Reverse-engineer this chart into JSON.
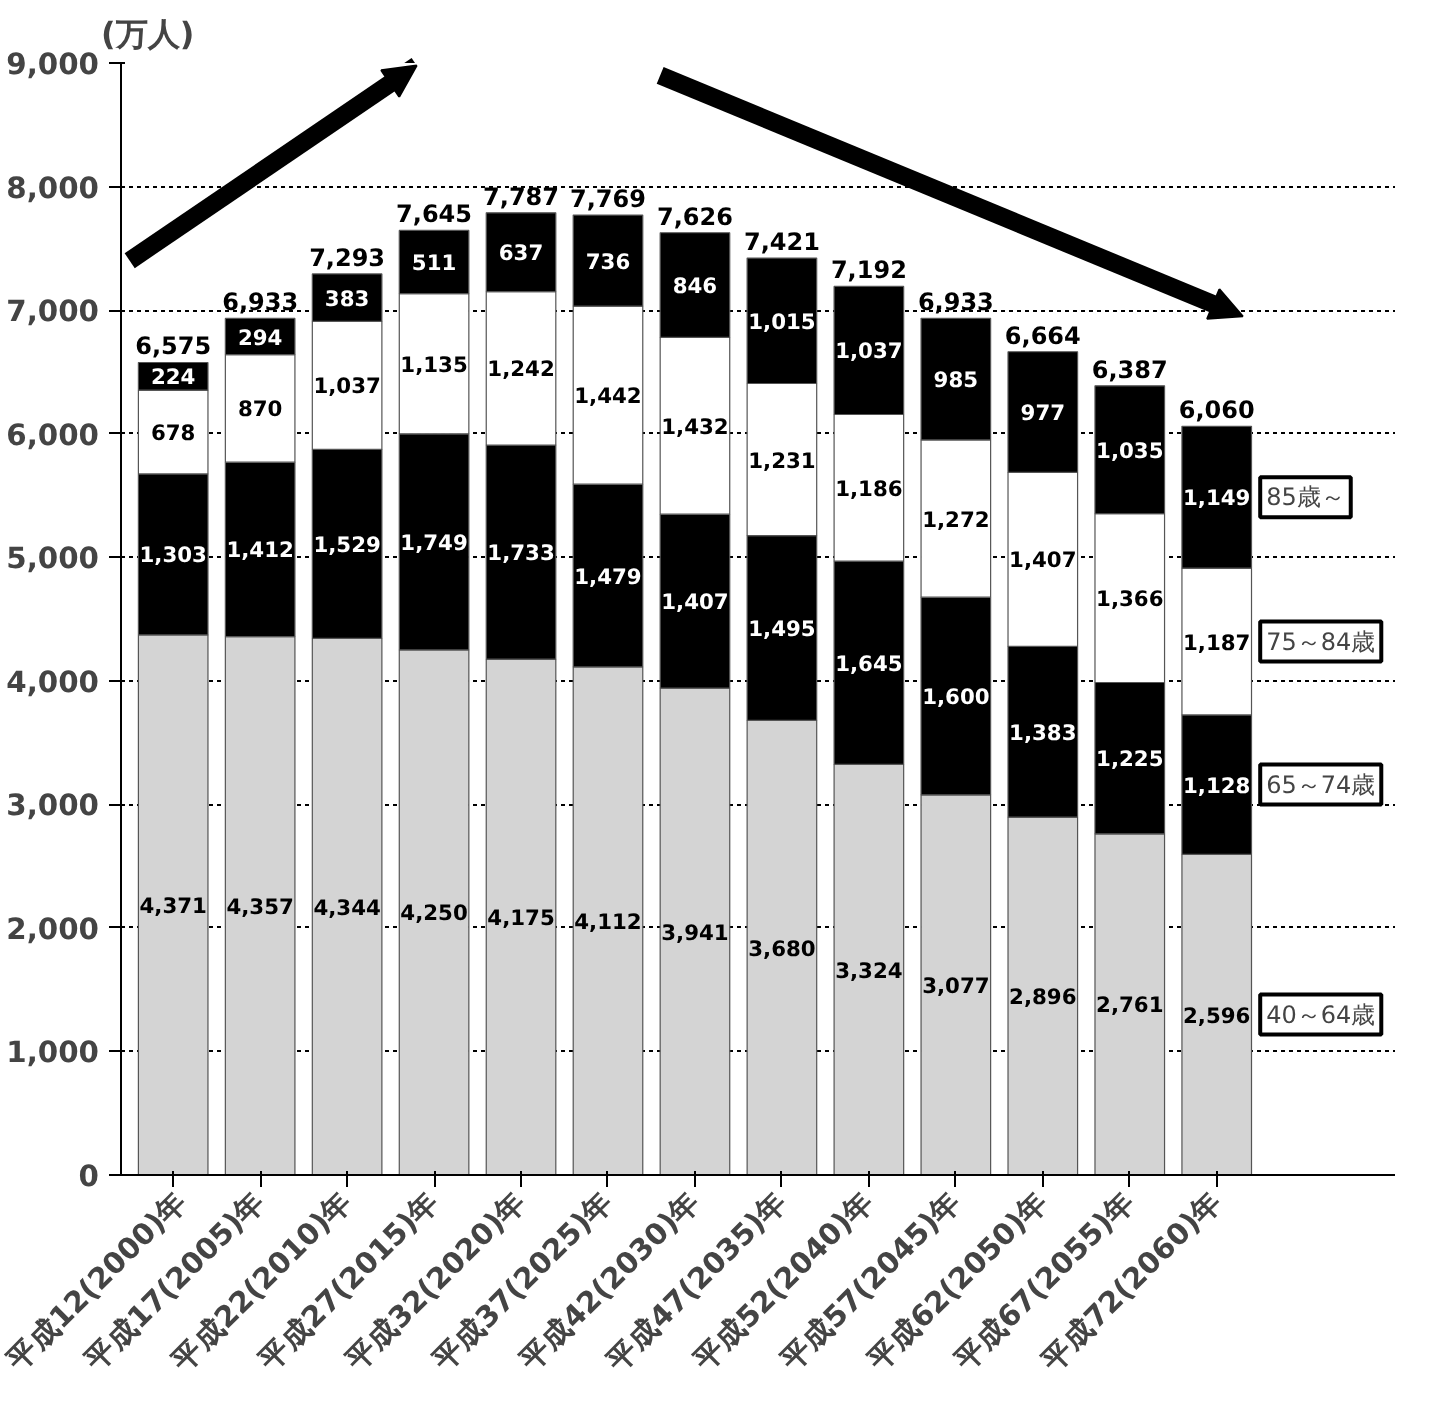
{
  "chart_data": {
    "type": "bar",
    "stacked": true,
    "ylabel": "(万人)",
    "categories": [
      "平成12(2000)年",
      "平成17(2005)年",
      "平成22(2010)年",
      "平成27(2015)年",
      "平成32(2020)年",
      "平成37(2025)年",
      "平成42(2030)年",
      "平成47(2035)年",
      "平成52(2040)年",
      "平成57(2045)年",
      "平成62(2050)年",
      "平成67(2055)年",
      "平成72(2060)年"
    ],
    "series": [
      {
        "name": "40～64歳",
        "color": "#d4d4d4",
        "values": [
          4371,
          4357,
          4344,
          4250,
          4175,
          4112,
          3941,
          3680,
          3324,
          3077,
          2896,
          2761,
          2596
        ],
        "value_labels": [
          "4,371",
          "4,357",
          "4,344",
          "4,250",
          "4,175",
          "4,112",
          "3,941",
          "3,680",
          "3,324",
          "3,077",
          "2,896",
          "2,761",
          "2,596"
        ]
      },
      {
        "name": "65～74歳",
        "color": "#000000",
        "values": [
          1303,
          1412,
          1529,
          1749,
          1733,
          1479,
          1407,
          1495,
          1645,
          1600,
          1383,
          1225,
          1128
        ],
        "value_labels": [
          "1,303",
          "1,412",
          "1,529",
          "1,749",
          "1,733",
          "1,479",
          "1,407",
          "1,495",
          "1,645",
          "1,600",
          "1,383",
          "1,225",
          "1,128"
        ]
      },
      {
        "name": "75～84歳",
        "color": "#ffffff",
        "values": [
          678,
          870,
          1037,
          1135,
          1242,
          1442,
          1432,
          1231,
          1186,
          1272,
          1407,
          1366,
          1187
        ],
        "value_labels": [
          "678",
          "870",
          "1,037",
          "1,135",
          "1,242",
          "1,442",
          "1,432",
          "1,231",
          "1,186",
          "1,272",
          "1,407",
          "1,366",
          "1,187"
        ]
      },
      {
        "name": "85歳～",
        "color": "#000000",
        "values": [
          224,
          294,
          383,
          511,
          637,
          736,
          846,
          1015,
          1037,
          985,
          977,
          1035,
          1149
        ],
        "value_labels": [
          "224",
          "294",
          "383",
          "511",
          "637",
          "736",
          "846",
          "1,015",
          "1,037",
          "985",
          "977",
          "1,035",
          "1,149"
        ]
      }
    ],
    "totals": [
      "6,575",
      "6,933",
      "7,293",
      "7,645",
      "7,787",
      "7,769",
      "7,626",
      "7,421",
      "7,192",
      "6,933",
      "6,664",
      "6,387",
      "6,060"
    ],
    "ylim": [
      0,
      9000
    ],
    "yticks": [
      {
        "value": 0,
        "label": "0"
      },
      {
        "value": 1000,
        "label": "1,000"
      },
      {
        "value": 2000,
        "label": "2,000"
      },
      {
        "value": 3000,
        "label": "3,000"
      },
      {
        "value": 4000,
        "label": "4,000"
      },
      {
        "value": 5000,
        "label": "5,000"
      },
      {
        "value": 6000,
        "label": "6,000"
      },
      {
        "value": 7000,
        "label": "7,000"
      },
      {
        "value": 8000,
        "label": "8,000"
      },
      {
        "value": 9000,
        "label": "9,000"
      }
    ],
    "grid": "y",
    "legend": "right"
  }
}
